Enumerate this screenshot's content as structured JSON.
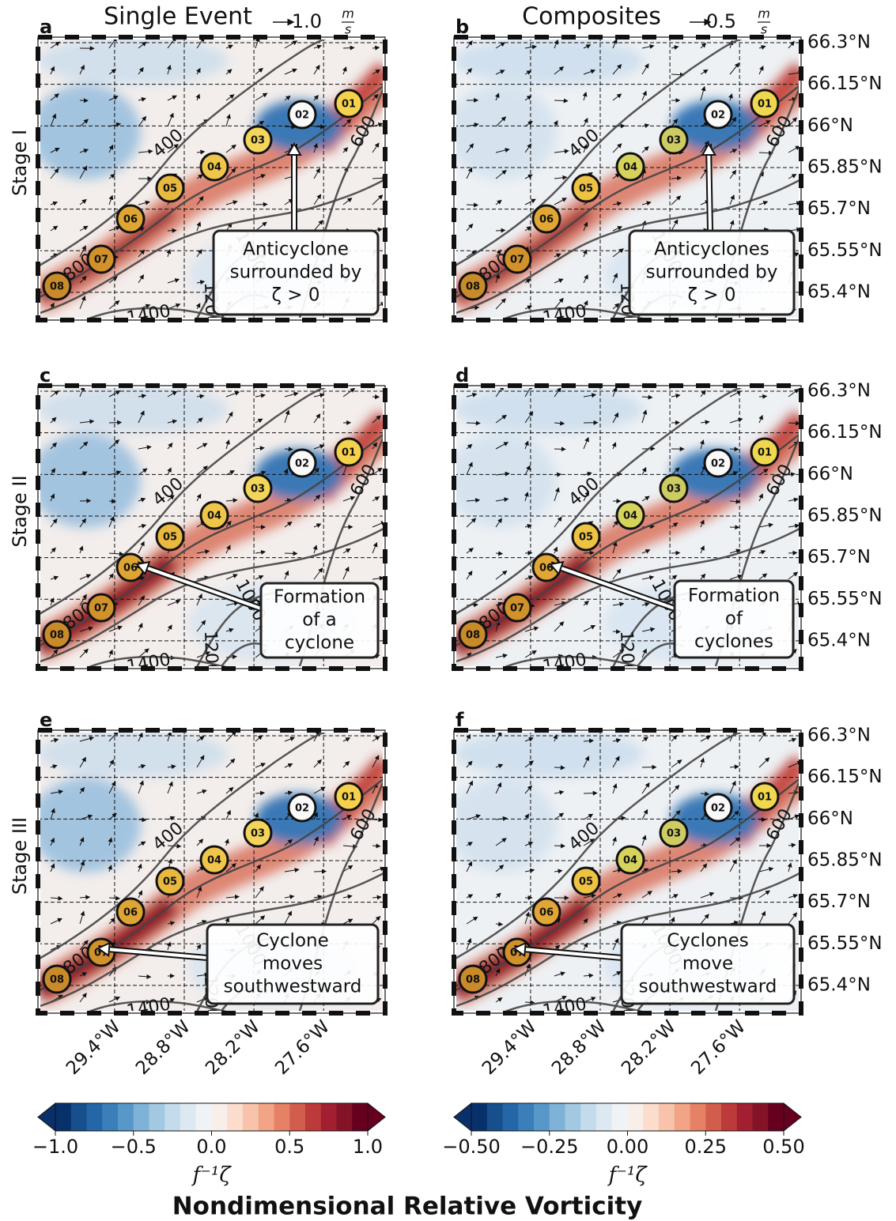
{
  "columns": [
    {
      "title": "Single Event",
      "key_value": "1.0",
      "key_unit_num": "m",
      "key_unit_den": "s"
    },
    {
      "title": "Composites",
      "key_value": "0.5",
      "key_unit_num": "m",
      "key_unit_den": "s"
    }
  ],
  "rows": [
    "Stage I",
    "Stage II",
    "Stage III"
  ],
  "panels": [
    {
      "letter": "a",
      "annotation": [
        "Anticyclone",
        "surrounded by",
        "ζ > 0"
      ]
    },
    {
      "letter": "b",
      "annotation": [
        "Anticyclones",
        "surrounded by",
        "ζ > 0"
      ]
    },
    {
      "letter": "c",
      "annotation": [
        "Formation",
        "of a",
        "cyclone"
      ]
    },
    {
      "letter": "d",
      "annotation": [
        "Formation",
        "of",
        "cyclones"
      ]
    },
    {
      "letter": "e",
      "annotation": [
        "Cyclone",
        "moves",
        "southwestward"
      ]
    },
    {
      "letter": "f",
      "annotation": [
        "Cyclones",
        "move",
        "southwestward"
      ]
    }
  ],
  "lat_lim": [
    65.3,
    66.32
  ],
  "lat_ticks": [
    {
      "value": 66.3,
      "label": "66.3°N"
    },
    {
      "value": 66.15,
      "label": "66.15°N"
    },
    {
      "value": 66,
      "label": "66°N"
    },
    {
      "value": 65.85,
      "label": "65.85°N"
    },
    {
      "value": 65.7,
      "label": "65.7°N"
    },
    {
      "value": 65.55,
      "label": "65.55°N"
    },
    {
      "value": 65.4,
      "label": "65.4°N"
    }
  ],
  "lon_lim": [
    -30.06,
    -27.07
  ],
  "lon_ticks": [
    {
      "value": -29.4,
      "label": "29.4°W"
    },
    {
      "value": -28.8,
      "label": "28.8°W"
    },
    {
      "value": -28.2,
      "label": "28.2°W"
    },
    {
      "value": -27.6,
      "label": "27.6°W"
    }
  ],
  "contour_labels": [
    "400",
    "600",
    "800",
    "1000",
    "1200",
    "1400"
  ],
  "stations": [
    "01",
    "02",
    "03",
    "04",
    "05",
    "06",
    "07",
    "08"
  ],
  "colormap": [
    "#08306b",
    "#164f8c",
    "#2466a8",
    "#3a7fba",
    "#5897c9",
    "#7eb2d6",
    "#a3c9e2",
    "#c4dbec",
    "#dde9f2",
    "#f0f3f6",
    "#f8efea",
    "#fbdccd",
    "#f8c3aa",
    "#f2a486",
    "#e58165",
    "#d35d4c",
    "#bd3a3a",
    "#a11f30",
    "#841328",
    "#67001f"
  ],
  "colorbars": [
    {
      "lim": [
        -1,
        1
      ],
      "ticks": [
        {
          "value": -1,
          "label": "−1.0"
        },
        {
          "value": -0.5,
          "label": "−0.5"
        },
        {
          "value": 0,
          "label": "0.0"
        },
        0.5,
        {
          "value": 1,
          "label": "1.0"
        }
      ],
      "label": "f⁻¹ζ"
    },
    {
      "lim": [
        -0.5,
        0.5
      ],
      "ticks": [
        {
          "value": -0.5,
          "label": "−0.50"
        },
        {
          "value": -0.25,
          "label": "−0.25"
        },
        {
          "value": 0,
          "label": "0.00"
        },
        0.25,
        {
          "value": 0.5,
          "label": "0.50"
        }
      ],
      "label": "f⁻¹ζ"
    }
  ],
  "title": "Nondimensional Relative Vorticity"
}
